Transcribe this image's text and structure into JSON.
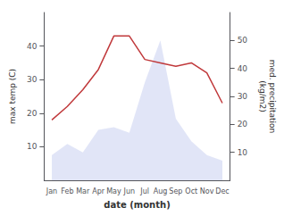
{
  "chart_data": {
    "type": "line",
    "categories": [
      "Jan",
      "Feb",
      "Mar",
      "Apr",
      "May",
      "Jun",
      "Jul",
      "Aug",
      "Sep",
      "Oct",
      "Nov",
      "Dec"
    ],
    "xlabel": "date (month)",
    "ylabel": "max temp (C)",
    "y2label": "med. precipitation\n(kg/m2)",
    "series": [
      {
        "type": "area",
        "color": "#c8d0f0",
        "axis": "y2",
        "values": [
          9,
          13,
          10,
          18,
          19,
          17,
          35,
          50,
          22,
          14,
          9,
          7
        ]
      },
      {
        "type": "line",
        "color": "#c0393b",
        "values": [
          18,
          22,
          27,
          33,
          43,
          43,
          36,
          35,
          34,
          35,
          32,
          23
        ]
      }
    ],
    "ylim": [
      0,
      50
    ],
    "yticks": [
      10,
      20,
      30,
      40
    ],
    "y2lim": [
      0,
      60
    ],
    "y2ticks": [
      10,
      20,
      30,
      40,
      50
    ],
    "grid": false
  }
}
